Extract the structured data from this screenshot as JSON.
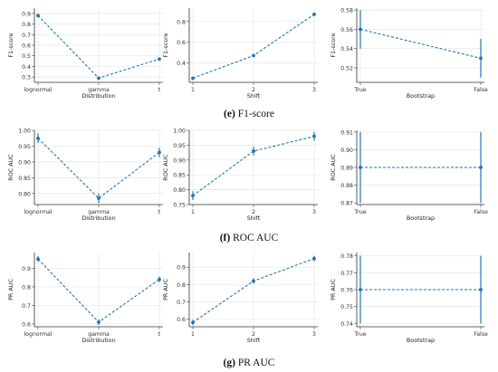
{
  "series_color": "#1f77b4",
  "captions": [
    {
      "letter": "(e)",
      "text": "F1-score"
    },
    {
      "letter": "(f)",
      "text": "ROC AUC"
    },
    {
      "letter": "(g)",
      "text": "PR AUC"
    }
  ],
  "chart_data": [
    {
      "type": "line",
      "xlabel": "Distribution",
      "ylabel": "F1-score",
      "categories": [
        "lognormal",
        "gamma",
        "t"
      ],
      "values": [
        0.88,
        0.29,
        0.47
      ],
      "err_low": [
        0.87,
        0.28,
        0.46
      ],
      "err_high": [
        0.89,
        0.3,
        0.48
      ],
      "ylim": [
        0.25,
        0.95
      ],
      "yticks": [
        "0.3",
        "0.4",
        "0.5",
        "0.6",
        "0.7",
        "0.8",
        "0.9"
      ],
      "ytick_values": [
        0.3,
        0.4,
        0.5,
        0.6,
        0.7,
        0.8,
        0.9
      ],
      "grid": true,
      "line_style": "dashed"
    },
    {
      "type": "line",
      "xlabel": "Shift",
      "ylabel": "F1-score",
      "categories": [
        "1",
        "2",
        "3"
      ],
      "values": [
        0.25,
        0.47,
        0.87
      ],
      "err_low": [
        0.24,
        0.46,
        0.86
      ],
      "err_high": [
        0.26,
        0.48,
        0.88
      ],
      "ylim": [
        0.21,
        0.93
      ],
      "yticks": [
        "0.4",
        "0.6",
        "0.8"
      ],
      "ytick_values": [
        0.4,
        0.6,
        0.8
      ],
      "grid": true,
      "line_style": "dashed"
    },
    {
      "type": "line",
      "xlabel": "Bootstrap",
      "ylabel": "F1-score",
      "categories": [
        "True",
        "False"
      ],
      "values": [
        0.56,
        0.53
      ],
      "err_low": [
        0.54,
        0.51
      ],
      "err_high": [
        0.58,
        0.55
      ],
      "ylim": [
        0.505,
        0.582
      ],
      "yticks": [
        "0.52",
        "0.54",
        "0.56",
        "0.58"
      ],
      "ytick_values": [
        0.52,
        0.54,
        0.56,
        0.58
      ],
      "grid": true,
      "line_style": "dashed"
    },
    {
      "type": "line",
      "xlabel": "Distribution",
      "ylabel": "ROC AUC",
      "categories": [
        "lognormal",
        "gamma",
        "t"
      ],
      "values": [
        0.975,
        0.785,
        0.93
      ],
      "err_low": [
        0.96,
        0.77,
        0.915
      ],
      "err_high": [
        0.99,
        0.8,
        0.945
      ],
      "ylim": [
        0.765,
        1.0
      ],
      "yticks": [
        "0.80",
        "0.85",
        "0.90",
        "0.95",
        "1.00"
      ],
      "ytick_values": [
        0.8,
        0.85,
        0.9,
        0.95,
        1.0
      ],
      "grid": true,
      "line_style": "dashed"
    },
    {
      "type": "line",
      "xlabel": "Shift",
      "ylabel": "ROC AUC",
      "categories": [
        "1",
        "2",
        "3"
      ],
      "values": [
        0.78,
        0.93,
        0.98
      ],
      "err_low": [
        0.765,
        0.915,
        0.965
      ],
      "err_high": [
        0.795,
        0.945,
        0.995
      ],
      "ylim": [
        0.75,
        1.0
      ],
      "yticks": [
        "0.75",
        "0.80",
        "0.85",
        "0.90",
        "0.95",
        "1.00"
      ],
      "ytick_values": [
        0.75,
        0.8,
        0.85,
        0.9,
        0.95,
        1.0
      ],
      "grid": true,
      "line_style": "dashed"
    },
    {
      "type": "line",
      "xlabel": "Bootstrap",
      "ylabel": "ROC AUC",
      "categories": [
        "True",
        "False"
      ],
      "values": [
        0.89,
        0.89
      ],
      "err_low": [
        0.87,
        0.87
      ],
      "err_high": [
        0.91,
        0.91
      ],
      "ylim": [
        0.869,
        0.911
      ],
      "yticks": [
        "0.87",
        "0.88",
        "0.89",
        "0.90",
        "0.91"
      ],
      "ytick_values": [
        0.87,
        0.88,
        0.89,
        0.9,
        0.91
      ],
      "grid": true,
      "line_style": "dashed"
    },
    {
      "type": "line",
      "xlabel": "Distribution",
      "ylabel": "PR AUC",
      "categories": [
        "lognormal",
        "gamma",
        "t"
      ],
      "values": [
        0.95,
        0.61,
        0.84
      ],
      "err_low": [
        0.935,
        0.595,
        0.825
      ],
      "err_high": [
        0.965,
        0.625,
        0.855
      ],
      "ylim": [
        0.585,
        0.985
      ],
      "yticks": [
        "0.6",
        "0.7",
        "0.8",
        "0.9"
      ],
      "ytick_values": [
        0.6,
        0.7,
        0.8,
        0.9
      ],
      "grid": true,
      "line_style": "dashed"
    },
    {
      "type": "line",
      "xlabel": "Shift",
      "ylabel": "PR AUC",
      "categories": [
        "1",
        "2",
        "3"
      ],
      "values": [
        0.58,
        0.82,
        0.95
      ],
      "err_low": [
        0.565,
        0.805,
        0.935
      ],
      "err_high": [
        0.595,
        0.835,
        0.965
      ],
      "ylim": [
        0.555,
        0.985
      ],
      "yticks": [
        "0.6",
        "0.7",
        "0.8",
        "0.9"
      ],
      "ytick_values": [
        0.6,
        0.7,
        0.8,
        0.9
      ],
      "grid": true,
      "line_style": "dashed"
    },
    {
      "type": "line",
      "xlabel": "Bootstrap",
      "ylabel": "PR AUC",
      "categories": [
        "True",
        "False"
      ],
      "values": [
        0.76,
        0.76
      ],
      "err_low": [
        0.74,
        0.74
      ],
      "err_high": [
        0.78,
        0.78
      ],
      "ylim": [
        0.738,
        0.782
      ],
      "yticks": [
        "0.74",
        "0.75",
        "0.76",
        "0.77",
        "0.78"
      ],
      "ytick_values": [
        0.74,
        0.75,
        0.76,
        0.77,
        0.78
      ],
      "grid": true,
      "line_style": "dashed"
    }
  ]
}
